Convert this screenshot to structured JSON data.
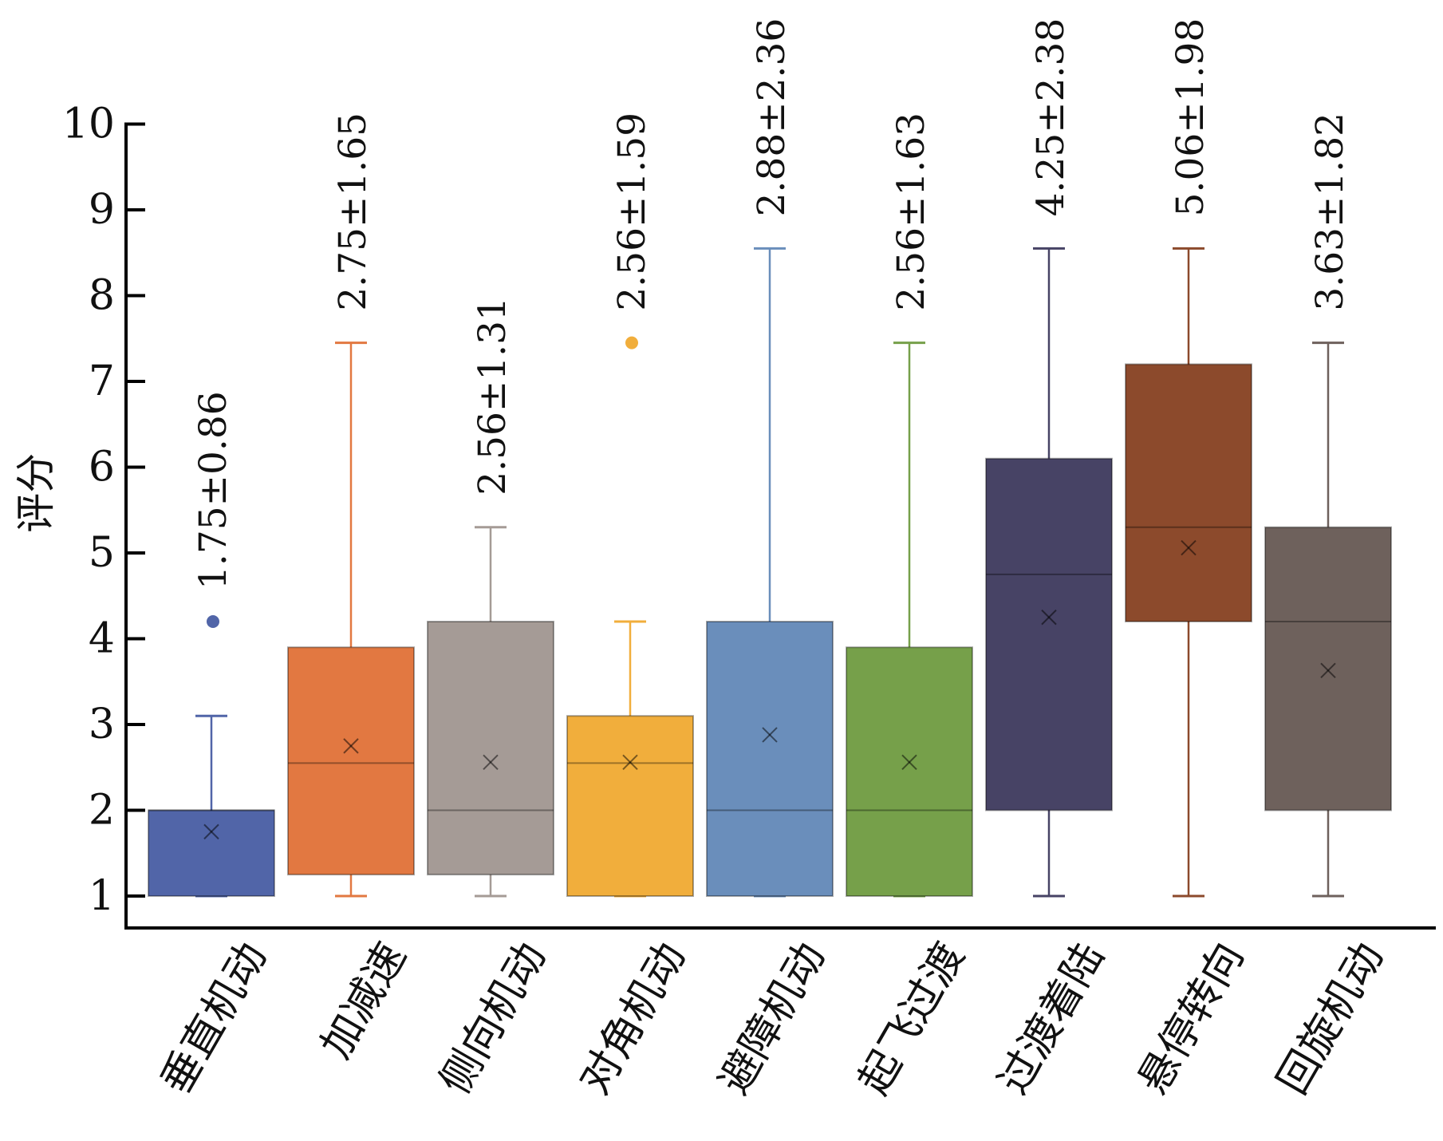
{
  "chart_data": {
    "type": "boxplot",
    "title": "",
    "xlabel": "",
    "ylabel": "评分",
    "ylim": [
      0.6,
      10
    ],
    "yticks": [
      1,
      2,
      3,
      4,
      5,
      6,
      7,
      8,
      9,
      10
    ],
    "categories": [
      "垂直机动",
      "加减速",
      "侧向机动",
      "对角机动",
      "避障机动",
      "起飞过渡",
      "过渡着陆",
      "悬停转向",
      "回旋机动"
    ],
    "boxes": [
      {
        "label": "垂直机动",
        "color": "#5165a8",
        "min": 1.0,
        "q1": 1.0,
        "median": 2.0,
        "q3": 2.0,
        "max": 3.1,
        "mean": 1.75,
        "outliers": [
          4.2
        ],
        "annotation": "1.75±0.86"
      },
      {
        "label": "加减速",
        "color": "#e27841",
        "min": 1.0,
        "q1": 1.25,
        "median": 2.55,
        "q3": 3.9,
        "max": 7.45,
        "mean": 2.75,
        "outliers": [],
        "annotation": "2.75±1.65"
      },
      {
        "label": "侧向机动",
        "color": "#a59b96",
        "min": 1.0,
        "q1": 1.25,
        "median": 2.0,
        "q3": 4.2,
        "max": 5.3,
        "mean": 2.56,
        "outliers": [],
        "annotation": "2.56±1.31"
      },
      {
        "label": "对角机动",
        "color": "#f1ae3c",
        "min": 1.0,
        "q1": 1.0,
        "median": 2.55,
        "q3": 3.1,
        "max": 4.2,
        "mean": 2.56,
        "outliers": [
          7.45
        ],
        "annotation": "2.56±1.59"
      },
      {
        "label": "避障机动",
        "color": "#6a8ebb",
        "min": 1.0,
        "q1": 1.0,
        "median": 2.0,
        "q3": 4.2,
        "max": 8.55,
        "mean": 2.88,
        "outliers": [],
        "annotation": "2.88±2.36"
      },
      {
        "label": "起飞过渡",
        "color": "#76a04a",
        "min": 1.0,
        "q1": 1.0,
        "median": 2.0,
        "q3": 3.9,
        "max": 7.45,
        "mean": 2.56,
        "outliers": [],
        "annotation": "2.56±1.63"
      },
      {
        "label": "过渡着陆",
        "color": "#474365",
        "min": 1.0,
        "q1": 2.0,
        "median": 4.75,
        "q3": 6.1,
        "max": 8.55,
        "mean": 4.25,
        "outliers": [],
        "annotation": "4.25±2.38"
      },
      {
        "label": "悬停转向",
        "color": "#8c4a2c",
        "min": 1.0,
        "q1": 4.2,
        "median": 5.3,
        "q3": 7.2,
        "max": 8.55,
        "mean": 5.06,
        "outliers": [],
        "annotation": "5.06±1.98"
      },
      {
        "label": "回旋机动",
        "color": "#6e615c",
        "min": 1.0,
        "q1": 2.0,
        "median": 4.2,
        "q3": 5.3,
        "max": 7.45,
        "mean": 3.63,
        "outliers": [],
        "annotation": "3.63±1.82"
      }
    ]
  }
}
